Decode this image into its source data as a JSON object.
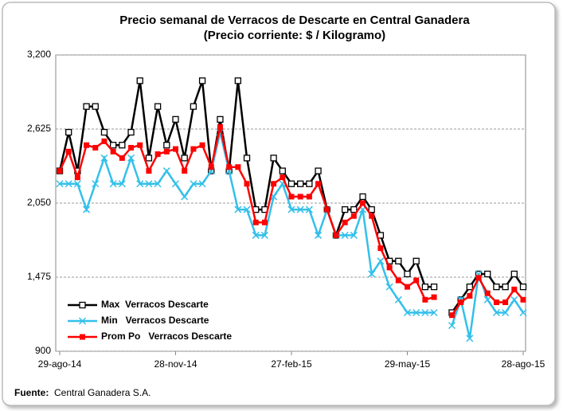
{
  "chart_data": {
    "type": "line",
    "title": "Precio semanal de Verracos de Descarte en Central Ganadera",
    "subtitle": "(Precio corriente: $ / Kilogramo)",
    "source_label": "Fuente:",
    "source": "Central Ganadera S.A.",
    "categories": [
      "29-ago-14",
      null,
      null,
      null,
      null,
      null,
      null,
      null,
      null,
      null,
      null,
      null,
      null,
      "28-nov-14",
      null,
      null,
      null,
      null,
      null,
      null,
      null,
      null,
      null,
      null,
      null,
      null,
      "27-feb-15",
      null,
      null,
      null,
      null,
      null,
      null,
      null,
      null,
      null,
      null,
      null,
      null,
      "29-may-15",
      null,
      null,
      null,
      null,
      null,
      null,
      null,
      null,
      null,
      null,
      null,
      null,
      "28-ago-15"
    ],
    "ylim": [
      900,
      3200
    ],
    "yticks": [
      900,
      {
        "value": 1475,
        "label": "1,475"
      },
      {
        "value": 2050,
        "label": "2,050"
      },
      {
        "value": 2625,
        "label": "2,625"
      },
      {
        "value": 3200,
        "label": "3,200"
      }
    ],
    "grid": true,
    "legend": "lower left",
    "series": [
      {
        "name": "Max  Verracos Descarte",
        "color": "#000000",
        "marker": "square-open",
        "values": [
          2300,
          2600,
          2300,
          2800,
          2800,
          2600,
          2500,
          2500,
          2600,
          3000,
          2400,
          2800,
          2500,
          2700,
          2400,
          2800,
          3000,
          2300,
          2700,
          2300,
          3000,
          2400,
          2000,
          2000,
          2400,
          2300,
          2200,
          2200,
          2200,
          2300,
          2000,
          1800,
          2000,
          2000,
          2100,
          2000,
          1800,
          1600,
          1600,
          1500,
          1600,
          1400,
          1400,
          null,
          1200,
          1300,
          1400,
          1500,
          1500,
          1400,
          1400,
          1500,
          1400
        ]
      },
      {
        "name": "Min   Verracos Descarte",
        "color": "#33c0ea",
        "marker": "x",
        "values": [
          2200,
          2200,
          2200,
          2000,
          2200,
          2400,
          2200,
          2200,
          2400,
          2200,
          2200,
          2200,
          2300,
          2200,
          2100,
          2200,
          2200,
          2300,
          2600,
          2300,
          2000,
          2000,
          1800,
          1800,
          2100,
          2200,
          2000,
          2000,
          2000,
          1800,
          2000,
          1800,
          1800,
          1800,
          2000,
          1500,
          1600,
          1400,
          1300,
          1200,
          1200,
          1200,
          1200,
          null,
          1100,
          1300,
          1000,
          1500,
          1300,
          1200,
          1200,
          1300,
          1200
        ]
      },
      {
        "name": "Prom Po   Verracos Descarte",
        "color": "#ff0000",
        "marker": "square",
        "values": [
          2300,
          2450,
          2250,
          2500,
          2480,
          2530,
          2450,
          2400,
          2480,
          2500,
          2300,
          2430,
          2450,
          2470,
          2300,
          2470,
          2500,
          2330,
          2640,
          2330,
          2330,
          2200,
          1900,
          1900,
          2200,
          2250,
          2100,
          2100,
          2100,
          2200,
          2000,
          1800,
          1900,
          1950,
          2050,
          1950,
          1700,
          1550,
          1450,
          1400,
          1450,
          1300,
          1320,
          null,
          1180,
          1280,
          1330,
          1470,
          1350,
          1280,
          1280,
          1380,
          1300
        ]
      }
    ]
  }
}
